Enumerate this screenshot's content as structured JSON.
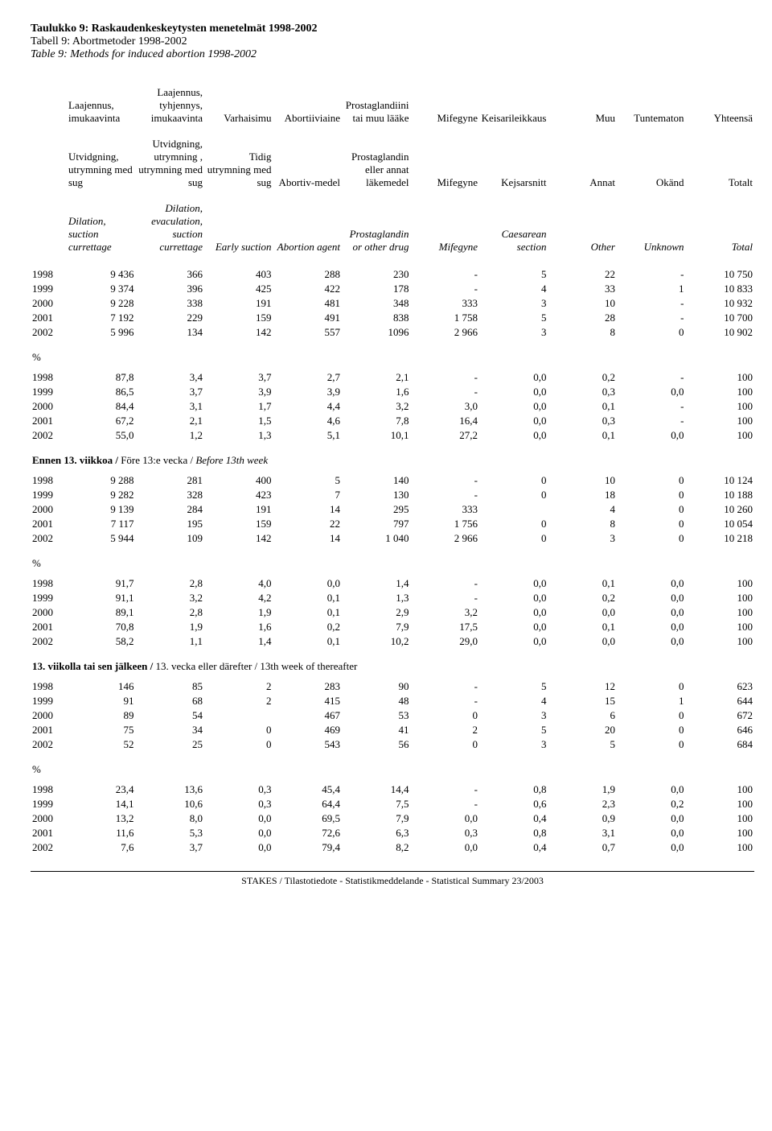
{
  "titles": {
    "fi": "Taulukko 9: Raskaudenkeskeytysten menetelmät 1998-2002",
    "sv": "Tabell 9: Abortmetoder 1998-2002",
    "en": "Table 9: Methods for induced abortion 1998-2002"
  },
  "headers": {
    "fi": [
      "Laajennus, imukaavinta",
      "Laajennus, tyhjennys, imukaavinta",
      "Varhaisimu",
      "Abortiiviaine",
      "Prostaglandiini tai muu lääke",
      "Mifegyne",
      "Keisarileikkaus",
      "Muu",
      "Tuntematon",
      "Yhteensä"
    ],
    "sv": [
      "Utvidgning, utrymning med sug",
      "Utvidgning, utrymning , utrymning med sug",
      "Tidig utrymning med sug",
      "Abortiv-medel",
      "Prostaglandin eller annat läkemedel",
      "Mifegyne",
      "Kejsarsnitt",
      "Annat",
      "Okänd",
      "Totalt"
    ],
    "en": [
      "Dilation, suction currettage",
      "Dilation, evaculation, suction currettage",
      "Early suction",
      "Abortion agent",
      "Prostaglandin or other drug",
      "Mifegyne",
      "Caesarean section",
      "Other",
      "Unknown",
      "Total"
    ]
  },
  "sections": [
    {
      "title": null,
      "rows": [
        [
          "1998",
          "9 436",
          "366",
          "403",
          "288",
          "230",
          "-",
          "5",
          "22",
          "-",
          "10 750"
        ],
        [
          "1999",
          "9 374",
          "396",
          "425",
          "422",
          "178",
          "-",
          "4",
          "33",
          "1",
          "10 833"
        ],
        [
          "2000",
          "9 228",
          "338",
          "191",
          "481",
          "348",
          "333",
          "3",
          "10",
          "-",
          "10 932"
        ],
        [
          "2001",
          "7 192",
          "229",
          "159",
          "491",
          "838",
          "1 758",
          "5",
          "28",
          "-",
          "10 700"
        ],
        [
          "2002",
          "5 996",
          "134",
          "142",
          "557",
          "1096",
          "2 966",
          "3",
          "8",
          "0",
          "10 902"
        ]
      ]
    },
    {
      "title": {
        "plain": "%"
      },
      "rows": [
        [
          "1998",
          "87,8",
          "3,4",
          "3,7",
          "2,7",
          "2,1",
          "-",
          "0,0",
          "0,2",
          "-",
          "100"
        ],
        [
          "1999",
          "86,5",
          "3,7",
          "3,9",
          "3,9",
          "1,6",
          "-",
          "0,0",
          "0,3",
          "0,0",
          "100"
        ],
        [
          "2000",
          "84,4",
          "3,1",
          "1,7",
          "4,4",
          "3,2",
          "3,0",
          "0,0",
          "0,1",
          "-",
          "100"
        ],
        [
          "2001",
          "67,2",
          "2,1",
          "1,5",
          "4,6",
          "7,8",
          "16,4",
          "0,0",
          "0,3",
          "-",
          "100"
        ],
        [
          "2002",
          "55,0",
          "1,2",
          "1,3",
          "5,1",
          "10,1",
          "27,2",
          "0,0",
          "0,1",
          "0,0",
          "100"
        ]
      ]
    },
    {
      "title": {
        "bold": "Ennen 13. viikkoa / ",
        "plain": "Före 13:e vecka / ",
        "italic": "Before 13th week"
      },
      "rows": [
        [
          "1998",
          "9 288",
          "281",
          "400",
          "5",
          "140",
          "-",
          "0",
          "10",
          "0",
          "10 124"
        ],
        [
          "1999",
          "9 282",
          "328",
          "423",
          "7",
          "130",
          "-",
          "0",
          "18",
          "0",
          "10 188"
        ],
        [
          "2000",
          "9 139",
          "284",
          "191",
          "14",
          "295",
          "333",
          "",
          "4",
          "0",
          "10 260"
        ],
        [
          "2001",
          "7 117",
          "195",
          "159",
          "22",
          "797",
          "1 756",
          "0",
          "8",
          "0",
          "10 054"
        ],
        [
          "2002",
          "5 944",
          "109",
          "142",
          "14",
          "1 040",
          "2 966",
          "0",
          "3",
          "0",
          "10 218"
        ]
      ]
    },
    {
      "title": {
        "plain": "%"
      },
      "rows": [
        [
          "1998",
          "91,7",
          "2,8",
          "4,0",
          "0,0",
          "1,4",
          "-",
          "0,0",
          "0,1",
          "0,0",
          "100"
        ],
        [
          "1999",
          "91,1",
          "3,2",
          "4,2",
          "0,1",
          "1,3",
          "-",
          "0,0",
          "0,2",
          "0,0",
          "100"
        ],
        [
          "2000",
          "89,1",
          "2,8",
          "1,9",
          "0,1",
          "2,9",
          "3,2",
          "0,0",
          "0,0",
          "0,0",
          "100"
        ],
        [
          "2001",
          "70,8",
          "1,9",
          "1,6",
          "0,2",
          "7,9",
          "17,5",
          "0,0",
          "0,1",
          "0,0",
          "100"
        ],
        [
          "2002",
          "58,2",
          "1,1",
          "1,4",
          "0,1",
          "10,2",
          "29,0",
          "0,0",
          "0,0",
          "0,0",
          "100"
        ]
      ]
    },
    {
      "title": {
        "bold": "13. viikolla tai sen jälkeen / ",
        "plain": "13. vecka eller därefter / 13th week of thereafter"
      },
      "rows": [
        [
          "1998",
          "146",
          "85",
          "2",
          "283",
          "90",
          "-",
          "5",
          "12",
          "0",
          "623"
        ],
        [
          "1999",
          "91",
          "68",
          "2",
          "415",
          "48",
          "-",
          "4",
          "15",
          "1",
          "644"
        ],
        [
          "2000",
          "89",
          "54",
          "",
          "467",
          "53",
          "0",
          "3",
          "6",
          "0",
          "672"
        ],
        [
          "2001",
          "75",
          "34",
          "0",
          "469",
          "41",
          "2",
          "5",
          "20",
          "0",
          "646"
        ],
        [
          "2002",
          "52",
          "25",
          "0",
          "543",
          "56",
          "0",
          "3",
          "5",
          "0",
          "684"
        ]
      ]
    },
    {
      "title": {
        "plain": "%"
      },
      "rows": [
        [
          "1998",
          "23,4",
          "13,6",
          "0,3",
          "45,4",
          "14,4",
          "-",
          "0,8",
          "1,9",
          "0,0",
          "100"
        ],
        [
          "1999",
          "14,1",
          "10,6",
          "0,3",
          "64,4",
          "7,5",
          "-",
          "0,6",
          "2,3",
          "0,2",
          "100"
        ],
        [
          "2000",
          "13,2",
          "8,0",
          "0,0",
          "69,5",
          "7,9",
          "0,0",
          "0,4",
          "0,9",
          "0,0",
          "100"
        ],
        [
          "2001",
          "11,6",
          "5,3",
          "0,0",
          "72,6",
          "6,3",
          "0,3",
          "0,8",
          "3,1",
          "0,0",
          "100"
        ],
        [
          "2002",
          "7,6",
          "3,7",
          "0,0",
          "79,4",
          "8,2",
          "0,0",
          "0,4",
          "0,7",
          "0,0",
          "100"
        ]
      ]
    }
  ],
  "footer": "STAKES / Tilastotiedote - Statistikmeddelande - Statistical Summary 23/2003"
}
